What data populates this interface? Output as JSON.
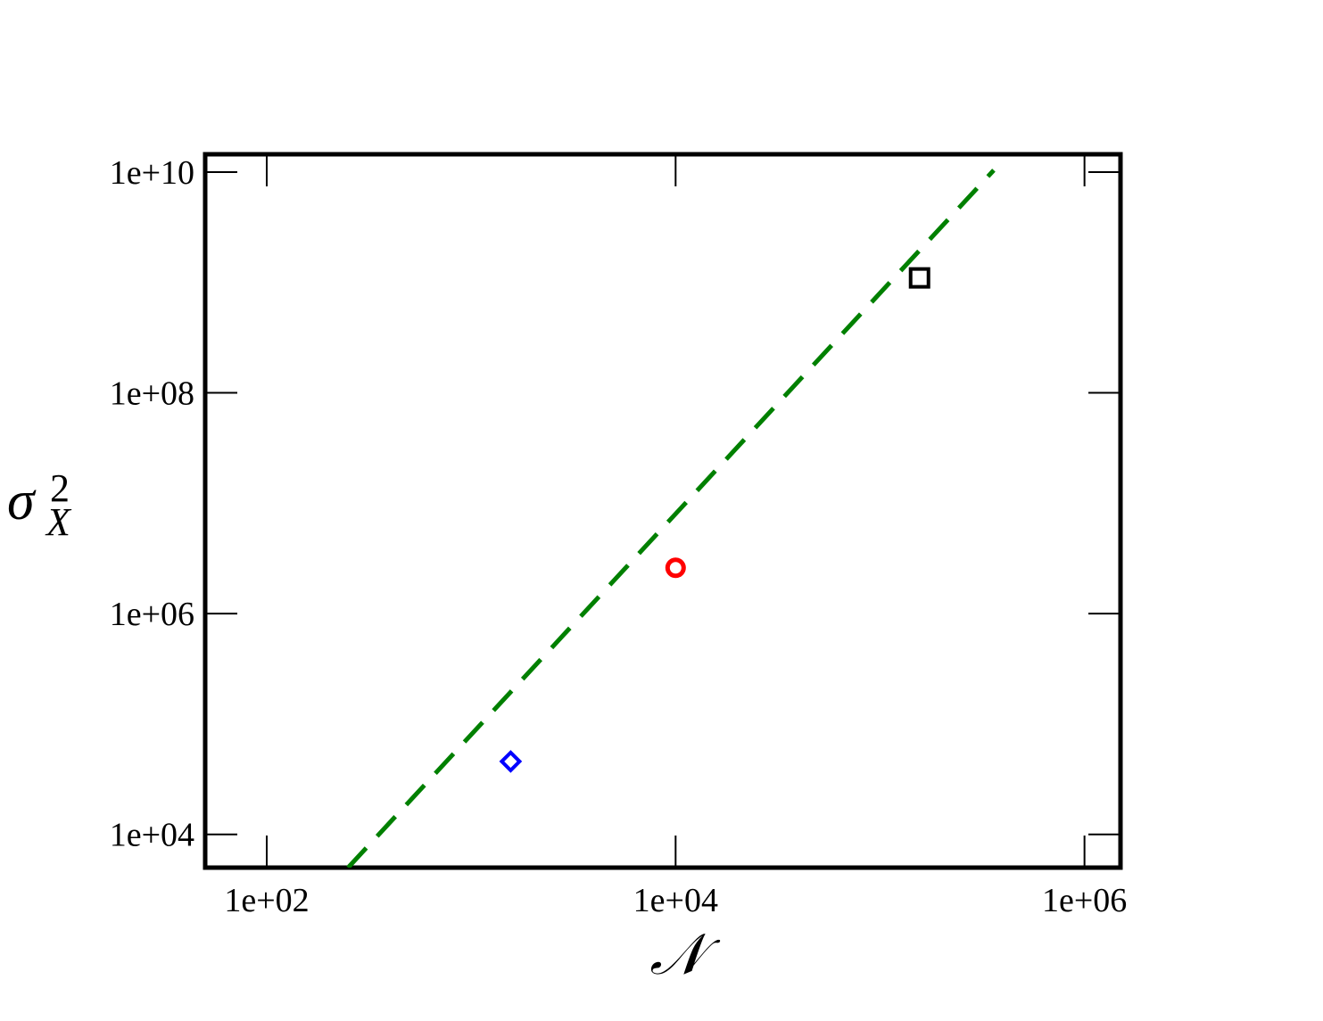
{
  "chart_data": {
    "type": "scatter",
    "xlabel": "𝒩",
    "ylabel": {
      "base": "σ",
      "sup": "2",
      "sub": "X"
    },
    "xscale": "log",
    "yscale": "log",
    "xlim": [
      50,
      1500000
    ],
    "ylim": [
      5000,
      14500000000
    ],
    "xticks": [
      {
        "value": 100,
        "label": "1e+02"
      },
      {
        "value": 10000,
        "label": "1e+04"
      },
      {
        "value": 1000000,
        "label": "1e+06"
      }
    ],
    "yticks": [
      {
        "value": 10000,
        "label": "1e+04"
      },
      {
        "value": 1000000,
        "label": "1e+06"
      },
      {
        "value": 100000000,
        "label": "1e+08"
      },
      {
        "value": 10000000000,
        "label": "1e+10"
      }
    ],
    "series": [
      {
        "marker": "diamond",
        "color": "#0000ff",
        "x": [
          1560
        ],
        "values": [
          45800
        ]
      },
      {
        "marker": "circle",
        "color": "#ff0000",
        "x": [
          10000
        ],
        "values": [
          2600000
        ]
      },
      {
        "marker": "square",
        "color": "#000000",
        "x": [
          156000
        ],
        "values": [
          1100000000
        ]
      },
      {
        "marker": "dashed-line",
        "color": "#008000",
        "x": [
          250,
          360000
        ],
        "values": [
          5000,
          10400000000
        ]
      }
    ]
  }
}
